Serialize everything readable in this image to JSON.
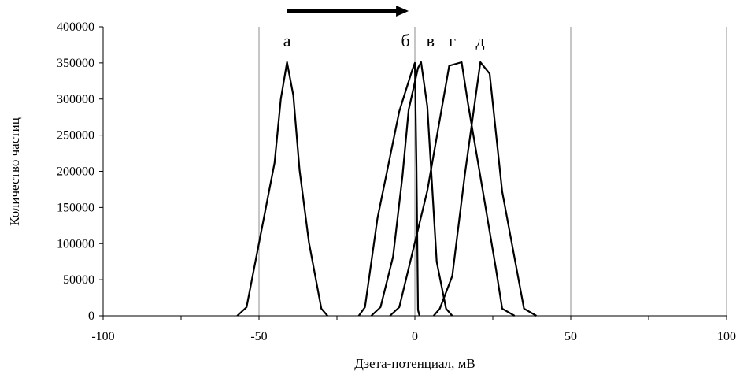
{
  "chart_data": {
    "type": "line",
    "xlabel": "Дзета-потенциал, мВ",
    "ylabel": "Количество частиц",
    "xlim": [
      -100,
      100
    ],
    "ylim": [
      0,
      400000
    ],
    "x_ticks": [
      -100,
      -50,
      0,
      50,
      100
    ],
    "y_ticks": [
      0,
      50000,
      100000,
      150000,
      200000,
      250000,
      300000,
      350000,
      400000
    ],
    "x_tick_labels": [
      "-100",
      "-50",
      "0",
      "50",
      "100"
    ],
    "y_tick_labels": [
      "0",
      "50000",
      "100000",
      "150000",
      "200000",
      "250000",
      "300000",
      "350000",
      "400000"
    ],
    "grid": "vertical",
    "arrow": {
      "from_x": -41,
      "to_x": -2
    },
    "series": [
      {
        "name": "а",
        "label_x": -41,
        "points": [
          [
            -57,
            0
          ],
          [
            -54,
            12000
          ],
          [
            -45,
            212000
          ],
          [
            -43,
            300000
          ],
          [
            -41,
            351000
          ],
          [
            -39,
            305000
          ],
          [
            -37,
            202000
          ],
          [
            -34,
            102000
          ],
          [
            -30,
            10000
          ],
          [
            -28,
            0
          ]
        ]
      },
      {
        "name": "б",
        "points": [
          [
            -18,
            0
          ],
          [
            -16,
            12000
          ],
          [
            -12,
            135000
          ],
          [
            -5,
            283000
          ],
          [
            -1,
            338000
          ],
          [
            0,
            350000
          ],
          [
            0.5,
            210000
          ],
          [
            1,
            8000
          ],
          [
            1.5,
            0
          ]
        ]
      },
      {
        "name": "в",
        "points": [
          [
            -14,
            0
          ],
          [
            -11,
            12000
          ],
          [
            -7,
            82000
          ],
          [
            -4,
            193000
          ],
          [
            -2,
            285000
          ],
          [
            1,
            343000
          ],
          [
            2,
            351000
          ],
          [
            4,
            290000
          ],
          [
            7,
            75000
          ],
          [
            10,
            10000
          ],
          [
            12,
            0
          ]
        ]
      },
      {
        "name": "г",
        "points": [
          [
            -8,
            0
          ],
          [
            -5,
            12000
          ],
          [
            4,
            173000
          ],
          [
            11,
            346000
          ],
          [
            15,
            351000
          ],
          [
            17,
            295000
          ],
          [
            21,
            193000
          ],
          [
            26,
            65000
          ],
          [
            28,
            10000
          ],
          [
            32,
            0
          ]
        ]
      },
      {
        "name": "д",
        "points": [
          [
            6,
            0
          ],
          [
            8,
            10000
          ],
          [
            12,
            55000
          ],
          [
            16,
            195000
          ],
          [
            21,
            351000
          ],
          [
            24,
            335000
          ],
          [
            28,
            172000
          ],
          [
            35,
            10000
          ],
          [
            39,
            0
          ]
        ]
      }
    ],
    "annotations": [
      {
        "text": "а",
        "x": -41
      },
      {
        "text": "б",
        "x": -3
      },
      {
        "text": "в",
        "x": 5
      },
      {
        "text": "г",
        "x": 12
      },
      {
        "text": "д",
        "x": 21
      }
    ]
  }
}
